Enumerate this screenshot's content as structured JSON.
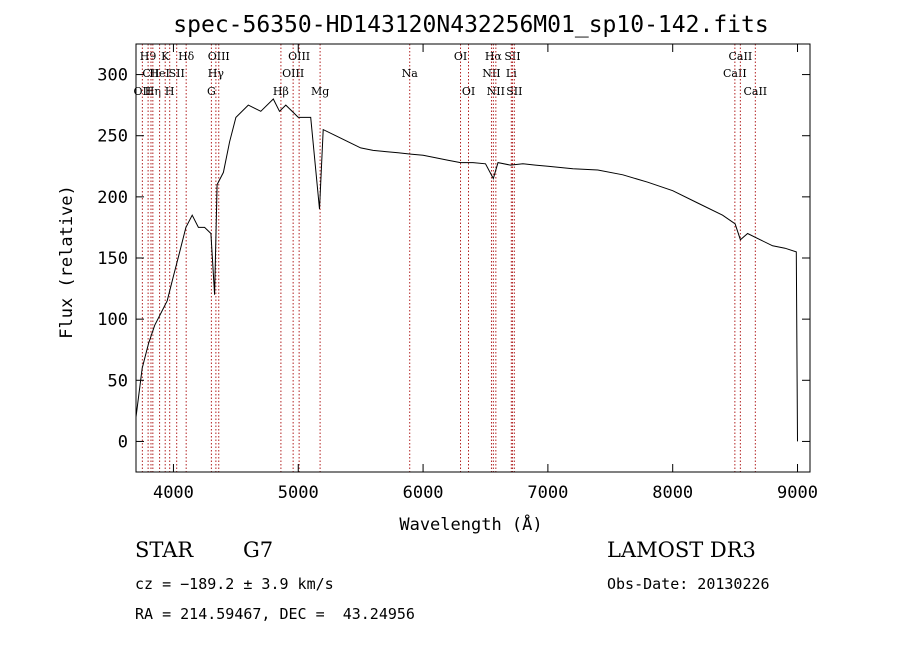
{
  "chart_data": {
    "type": "line",
    "title": "spec-56350-HD143120N432256M01_sp10-142.fits",
    "xlabel": "Wavelength (Å)",
    "ylabel": "Flux (relative)",
    "xlim": [
      3700,
      9100
    ],
    "ylim": [
      -25,
      325
    ],
    "xticks": [
      4000,
      5000,
      6000,
      7000,
      8000,
      9000
    ],
    "yticks": [
      0,
      50,
      100,
      150,
      200,
      250,
      300
    ],
    "grid": false,
    "line_color": "#000000",
    "marker_color": "#b22222",
    "series": [
      {
        "x": [
          3700,
          3750,
          3800,
          3850,
          3900,
          3950,
          4000,
          4050,
          4100,
          4150,
          4200,
          4250,
          4300,
          4330,
          4350,
          4400,
          4450,
          4500,
          4600,
          4700,
          4800,
          4850,
          4900,
          5000,
          5100,
          5170,
          5200,
          5300,
          5400,
          5500,
          5600,
          5700,
          5800,
          5900,
          6000,
          6100,
          6200,
          6300,
          6400,
          6500,
          6563,
          6600,
          6700,
          6800,
          6900,
          7000,
          7200,
          7400,
          7600,
          7800,
          8000,
          8200,
          8400,
          8500,
          8542,
          8600,
          8700,
          8800,
          8900,
          8990,
          9000
        ],
        "y": [
          20,
          60,
          80,
          95,
          105,
          115,
          135,
          155,
          175,
          185,
          175,
          175,
          170,
          120,
          210,
          220,
          245,
          265,
          275,
          270,
          280,
          270,
          275,
          265,
          265,
          190,
          255,
          250,
          245,
          240,
          238,
          237,
          236,
          235,
          234,
          232,
          230,
          228,
          228,
          227,
          215,
          228,
          226,
          227,
          226,
          225,
          223,
          222,
          218,
          212,
          205,
          195,
          185,
          178,
          165,
          170,
          165,
          160,
          158,
          155,
          0
        ]
      }
    ],
    "markers": [
      {
        "wavelength": 3751,
        "label": "OII",
        "row": 2
      },
      {
        "wavelength": 3797,
        "label": "H9",
        "row": 0
      },
      {
        "wavelength": 3820,
        "label": "CII",
        "row": 1
      },
      {
        "wavelength": 3835,
        "label": "Hη",
        "row": 2
      },
      {
        "wavelength": 3889,
        "label": "HeI",
        "row": 1
      },
      {
        "wavelength": 3934,
        "label": "K",
        "row": 0
      },
      {
        "wavelength": 3970,
        "label": "H",
        "row": 2
      },
      {
        "wavelength": 4026,
        "label": "SII",
        "row": 1
      },
      {
        "wavelength": 4102,
        "label": "Hδ",
        "row": 0
      },
      {
        "wavelength": 4304,
        "label": "G",
        "row": 2
      },
      {
        "wavelength": 4340,
        "label": "Hγ",
        "row": 1
      },
      {
        "wavelength": 4363,
        "label": "OIII",
        "row": 0
      },
      {
        "wavelength": 4861,
        "label": "Hβ",
        "row": 2
      },
      {
        "wavelength": 4959,
        "label": "OIII",
        "row": 1
      },
      {
        "wavelength": 5007,
        "label": "OIII",
        "row": 0
      },
      {
        "wavelength": 5175,
        "label": "Mg",
        "row": 2
      },
      {
        "wavelength": 5893,
        "label": "Na",
        "row": 1
      },
      {
        "wavelength": 6300,
        "label": "OI",
        "row": 0
      },
      {
        "wavelength": 6364,
        "label": "OI",
        "row": 2
      },
      {
        "wavelength": 6548,
        "label": "NII",
        "row": 1
      },
      {
        "wavelength": 6563,
        "label": "Hα",
        "row": 0
      },
      {
        "wavelength": 6583,
        "label": "NII",
        "row": 2
      },
      {
        "wavelength": 6707,
        "label": "Li",
        "row": 1
      },
      {
        "wavelength": 6716,
        "label": "SII",
        "row": 0
      },
      {
        "wavelength": 6731,
        "label": "SII",
        "row": 2
      },
      {
        "wavelength": 8498,
        "label": "CaII",
        "row": 1
      },
      {
        "wavelength": 8542,
        "label": "CaII",
        "row": 0
      },
      {
        "wavelength": 8662,
        "label": "CaII",
        "row": 2
      }
    ]
  },
  "info": {
    "object_class": "STAR",
    "subclass": "G7",
    "survey": "LAMOST DR3",
    "redshift": "cz = −189.2 ± 3.9 km/s",
    "obs_date": "Obs-Date: 20130226",
    "coords": "RA = 214.59467, DEC =  43.24956"
  }
}
